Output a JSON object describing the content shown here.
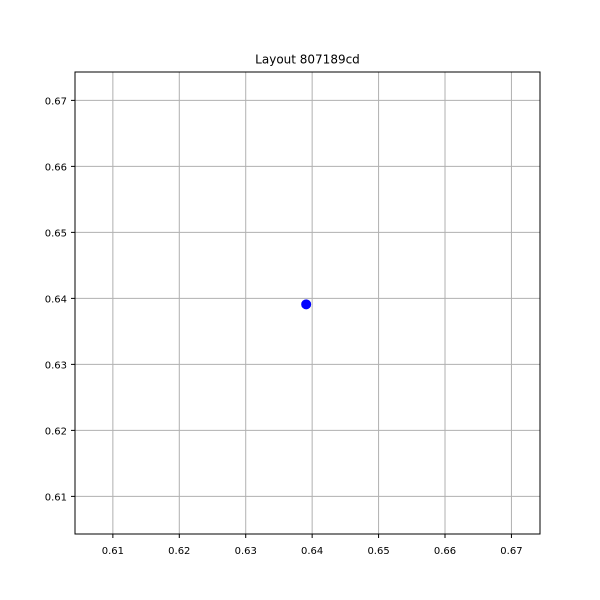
{
  "chart_data": {
    "type": "scatter",
    "title": "Layout 807189cd",
    "xlabel": "",
    "ylabel": "",
    "xlim": [
      0.6043,
      0.6743
    ],
    "ylim": [
      0.6043,
      0.6743
    ],
    "xticks": [
      0.61,
      0.62,
      0.63,
      0.64,
      0.65,
      0.66,
      0.67
    ],
    "yticks": [
      0.61,
      0.62,
      0.63,
      0.64,
      0.65,
      0.66,
      0.67
    ],
    "xtick_labels": [
      "0.61",
      "0.62",
      "0.63",
      "0.64",
      "0.65",
      "0.66",
      "0.67"
    ],
    "ytick_labels": [
      "0.61",
      "0.62",
      "0.63",
      "0.64",
      "0.65",
      "0.66",
      "0.67"
    ],
    "grid": true,
    "series": [
      {
        "points": [
          {
            "x": 0.6391,
            "y": 0.6391
          }
        ],
        "color": "#0000ff"
      }
    ]
  },
  "colors": {
    "grid": "#b0b0b0",
    "axes": "#000000",
    "point": "#0000ff"
  }
}
